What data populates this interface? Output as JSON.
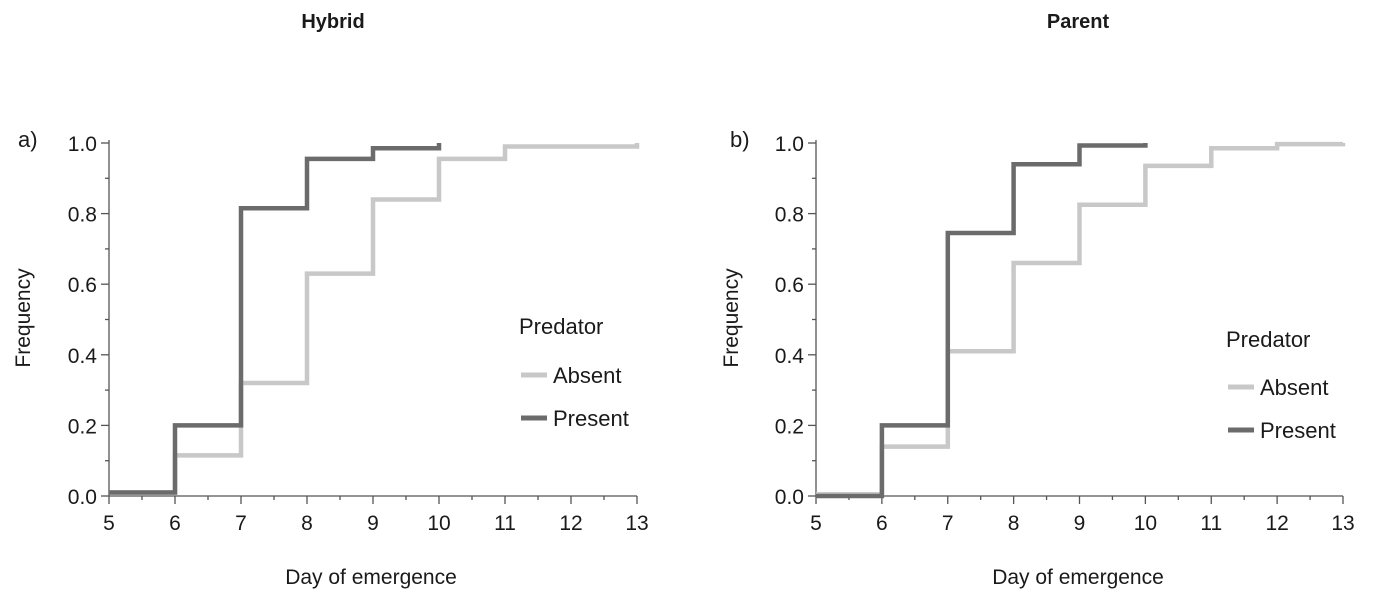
{
  "chart_data": [
    {
      "type": "line",
      "step": true,
      "panel_label": "a)",
      "title": "Hybrid",
      "xlabel": "Day of emergence",
      "ylabel": "Frequency",
      "xlim": [
        5,
        13
      ],
      "ylim": [
        0,
        1
      ],
      "x_ticks": [
        "5",
        "6",
        "7",
        "8",
        "9",
        "10",
        "11",
        "12",
        "13"
      ],
      "y_ticks": [
        "0.0",
        "0.2",
        "0.4",
        "0.6",
        "0.8",
        "1.0"
      ],
      "grid": false,
      "legend": {
        "title": "Predator",
        "placement": "right"
      },
      "series": [
        {
          "name": "Absent",
          "color": "#c8c8c8",
          "points": [
            [
              5,
              0.01
            ],
            [
              6,
              0.01
            ],
            [
              6,
              0.115
            ],
            [
              7,
              0.115
            ],
            [
              7,
              0.32
            ],
            [
              8,
              0.32
            ],
            [
              8,
              0.63
            ],
            [
              9,
              0.63
            ],
            [
              9,
              0.84
            ],
            [
              10,
              0.84
            ],
            [
              10,
              0.955
            ],
            [
              11,
              0.955
            ],
            [
              11,
              0.99
            ],
            [
              13,
              0.99
            ],
            [
              13,
              1.0
            ]
          ]
        },
        {
          "name": "Present",
          "color": "#6b6b6b",
          "points": [
            [
              5,
              0.01
            ],
            [
              6,
              0.01
            ],
            [
              6,
              0.2
            ],
            [
              7,
              0.2
            ],
            [
              7,
              0.815
            ],
            [
              8,
              0.815
            ],
            [
              8,
              0.955
            ],
            [
              9,
              0.955
            ],
            [
              9,
              0.985
            ],
            [
              10,
              0.985
            ],
            [
              10,
              1.0
            ]
          ]
        }
      ]
    },
    {
      "type": "line",
      "step": true,
      "panel_label": "b)",
      "title": "Parent",
      "xlabel": "Day of emergence",
      "ylabel": "Frequency",
      "xlim": [
        5,
        13
      ],
      "ylim": [
        0,
        1
      ],
      "x_ticks": [
        "5",
        "6",
        "7",
        "8",
        "9",
        "10",
        "11",
        "12",
        "13"
      ],
      "y_ticks": [
        "0.0",
        "0.2",
        "0.4",
        "0.6",
        "0.8",
        "1.0"
      ],
      "grid": false,
      "legend": {
        "title": "Predator",
        "placement": "right"
      },
      "series": [
        {
          "name": "Absent",
          "color": "#c8c8c8",
          "points": [
            [
              5,
              0.005
            ],
            [
              6,
              0.005
            ],
            [
              6,
              0.14
            ],
            [
              7,
              0.14
            ],
            [
              7,
              0.41
            ],
            [
              8,
              0.41
            ],
            [
              8,
              0.66
            ],
            [
              9,
              0.66
            ],
            [
              9,
              0.825
            ],
            [
              10,
              0.825
            ],
            [
              10,
              0.935
            ],
            [
              11,
              0.935
            ],
            [
              11,
              0.985
            ],
            [
              12,
              0.985
            ],
            [
              12,
              0.997
            ],
            [
              13,
              0.997
            ],
            [
              13,
              1.0
            ]
          ]
        },
        {
          "name": "Present",
          "color": "#6b6b6b",
          "points": [
            [
              5,
              0.0
            ],
            [
              6,
              0.0
            ],
            [
              6,
              0.2
            ],
            [
              7,
              0.2
            ],
            [
              7,
              0.745
            ],
            [
              8,
              0.745
            ],
            [
              8,
              0.94
            ],
            [
              9,
              0.94
            ],
            [
              9,
              0.993
            ],
            [
              10,
              0.993
            ],
            [
              10,
              1.0
            ]
          ]
        }
      ]
    }
  ]
}
